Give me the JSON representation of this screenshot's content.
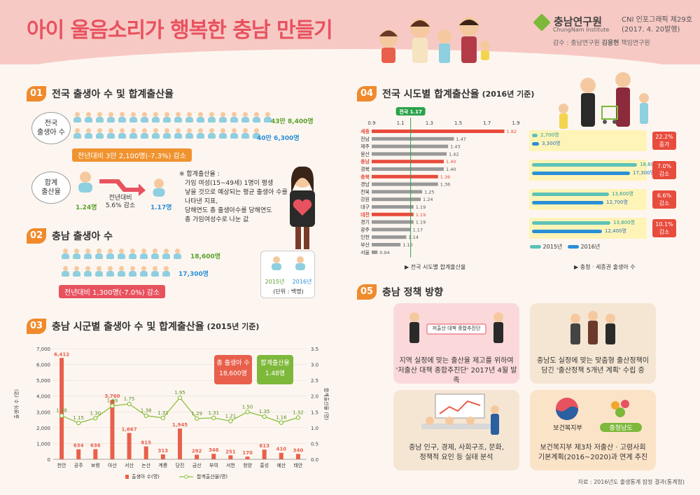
{
  "header": {
    "title": "아이 울음소리가 행복한 충남 만들기",
    "logo_name": "충남연구원",
    "logo_sub": "ChungNam Institute",
    "issue": "CNI 인포그래픽 제29호",
    "date": "(2017. 4. 20발행)",
    "supervisor_prefix": "감수 : 충남연구원 ",
    "supervisor_name": "김용현",
    "supervisor_suffix": " 책임연구원"
  },
  "sec1": {
    "num": "01",
    "title": "전국 출생아 수 및 합계출산율",
    "births_label": "전국\n출생아 수",
    "births_2015": "43만 8,400명",
    "births_2016": "40만 6,300명",
    "births_change": "전년대비 3만 2,100명(-7.3%) 감소",
    "tfr_label": "합계\n출산율",
    "tfr_2015": "1.24명",
    "tfr_change_label": "전년대비",
    "tfr_change": "5.6% 감소",
    "tfr_2016": "1.17명",
    "note_title": "※ 합계출산율 :",
    "note_lines": [
      "가임 여성(15~49세) 1명이 평생",
      "낳을 것으로 예상되는 평균 출생아 수를",
      "나타낸 지표,",
      "당해연도 총 출생아수를 당해연도",
      "총 가임여성수로 나눈 값"
    ]
  },
  "sec2": {
    "num": "02",
    "title": "충남 출생아 수",
    "births_2015": "18,600명",
    "births_2016": "17,300명",
    "change": "전년대비 1,300명(-7.0%) 감소",
    "legend_2015": "2015년",
    "legend_2016": "2016년",
    "unit": "(단위 : 백명)"
  },
  "sec3": {
    "num": "03",
    "title": "충남 시군별 출생아 수 및 합계출산율",
    "sub": "(2015년 기준)",
    "total_births_label": "총 출생아 수",
    "total_births": "18,600명",
    "total_tfr_label": "합계출산율",
    "total_tfr": "1.48명",
    "legend_bar": "출생아 수(명)",
    "legend_line": "합계출산율(명)",
    "ylabel_left": "출생아 수 (명)",
    "ylabel_right": "합계출산율 (명)"
  },
  "chart_data": {
    "type": "bar",
    "categories": [
      "천안",
      "공주",
      "보령",
      "아산",
      "서산",
      "논산",
      "계룡",
      "당진",
      "금산",
      "부여",
      "서천",
      "청양",
      "홍성",
      "예산",
      "태안"
    ],
    "series": [
      {
        "name": "출생아 수(명)",
        "type": "bar",
        "values": [
          6412,
          634,
          636,
          3760,
          1667,
          815,
          313,
          1945,
          292,
          346,
          251,
          170,
          613,
          410,
          340
        ]
      },
      {
        "name": "합계출산율(명)",
        "type": "line",
        "values": [
          1.38,
          1.15,
          1.3,
          1.69,
          1.75,
          1.38,
          1.31,
          1.95,
          1.29,
          1.31,
          1.21,
          1.5,
          1.35,
          1.16,
          1.32
        ]
      }
    ],
    "ylim": [
      0,
      7000
    ],
    "ylim_right": [
      0,
      3.5
    ],
    "yticks": [
      "0",
      "1,000",
      "2,000",
      "3,000",
      "4,000",
      "5,000",
      "6,000",
      "7,000"
    ],
    "yticks_right": [
      "0.0",
      "0.5",
      "1.0",
      "1.5",
      "2.0",
      "2.5",
      "3.0",
      "3.5"
    ],
    "bar_labels": [
      "6,412",
      "634",
      "636",
      "3,760",
      "1,667",
      "815",
      "313",
      "1,945",
      "292",
      "346",
      "251",
      "170",
      "613",
      "410",
      "340"
    ],
    "line_labels": [
      "1.38",
      "1.15",
      "1.30",
      "1.69",
      "1.75",
      "1.38",
      "1.31",
      "1.95",
      "1.29",
      "1.31",
      "1.21",
      "1.50",
      "1.35",
      "1.16",
      "1.32"
    ],
    "colors": {
      "bar": "#e8604c",
      "line": "#8bbf3c"
    }
  },
  "sec4": {
    "num": "04",
    "title": "전국 시도별 합계출산율",
    "sub": "(2016년 기준)",
    "national_label": "전국 1.17",
    "national_value": 1.17,
    "xticks": [
      "0.9",
      "1.1",
      "1.3",
      "1.5",
      "1.7",
      "1.9"
    ],
    "xlim": [
      0.9,
      1.9
    ],
    "regions": [
      "세종",
      "전남",
      "제주",
      "울산",
      "충남",
      "경북",
      "충북",
      "경남",
      "전북",
      "강원",
      "대구",
      "대전",
      "경기",
      "광주",
      "인천",
      "부산",
      "서울"
    ],
    "values": [
      1.82,
      1.47,
      1.43,
      1.42,
      1.4,
      1.4,
      1.36,
      1.36,
      1.25,
      1.24,
      1.19,
      1.19,
      1.19,
      1.17,
      1.14,
      1.1,
      0.94
    ],
    "value_labels": [
      "1.82",
      "1.47",
      "1.43",
      "1.42",
      "1.40",
      "1.40",
      "1.36",
      "1.36",
      "1.25",
      "1.24",
      "1.19",
      "1.19",
      "1.19",
      "1.17",
      "1.14",
      "1.10",
      "0.94"
    ],
    "highlight": [
      "세종",
      "충남",
      "충북",
      "대전"
    ],
    "footer_left": "전국 시도별 합계출산율",
    "footer_right": "충청 · 세종권 출생아 수",
    "legend_2015": "2015년",
    "legend_2016": "2016년",
    "compare": [
      {
        "v2015": "2,700명",
        "v2016": "3,300명",
        "change": "22.2%\n증가"
      },
      {
        "v2015": "18,600명",
        "v2016": "17,300명",
        "change": "7.0%\n감소"
      },
      {
        "v2015": "13,600명",
        "v2016": "12,700명",
        "change": "6.6%\n감소"
      },
      {
        "v2015": "13,800명",
        "v2016": "12,400명",
        "change": "10.1%\n감소"
      }
    ]
  },
  "sec5": {
    "num": "05",
    "title": "충남 정책 방향",
    "banner": "저출산 대책 종합추진단",
    "p1": "지역 실정에 맞는 출산율 제고를 위하여\n'저출산 대책 종합추진단' 2017년 4월 발족",
    "p2": "충남도 실정에 맞는 맞춤형 출산정책이\n담긴 '출산정책 5개년 계획' 수립 중",
    "p3": "충남 인구, 경제, 사회구조, 문화,\n정책적 요인 등 실태 분석",
    "p4": "보건복지부 제3차 저출산 · 고령사회\n기본계획(2016~2020)과 연계 추진",
    "org1": "보건복지부",
    "org2": "충청남도"
  },
  "source": "자료 : 2016년도 출생통계 잠정 결과(통계청)"
}
